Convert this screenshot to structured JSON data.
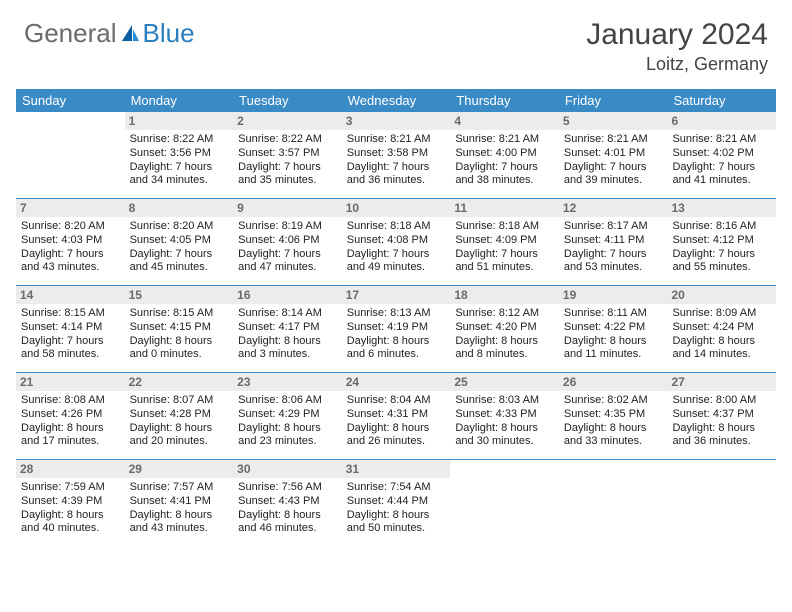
{
  "brand": {
    "part1": "General",
    "part2": "Blue"
  },
  "title": "January 2024",
  "location": "Loitz, Germany",
  "colors": {
    "header_bar": "#3a8ac6",
    "daynum_bg": "#ececec",
    "daynum_fg": "#6a6a6a",
    "text": "#222222",
    "title_fg": "#444444",
    "logo_gray": "#6b6b6b",
    "logo_blue": "#2a7fbf"
  },
  "day_names": [
    "Sunday",
    "Monday",
    "Tuesday",
    "Wednesday",
    "Thursday",
    "Friday",
    "Saturday"
  ],
  "weeks": [
    [
      {
        "n": "",
        "sr": "",
        "ss": "",
        "dl": ""
      },
      {
        "n": "1",
        "sr": "Sunrise: 8:22 AM",
        "ss": "Sunset: 3:56 PM",
        "dl": "Daylight: 7 hours and 34 minutes."
      },
      {
        "n": "2",
        "sr": "Sunrise: 8:22 AM",
        "ss": "Sunset: 3:57 PM",
        "dl": "Daylight: 7 hours and 35 minutes."
      },
      {
        "n": "3",
        "sr": "Sunrise: 8:21 AM",
        "ss": "Sunset: 3:58 PM",
        "dl": "Daylight: 7 hours and 36 minutes."
      },
      {
        "n": "4",
        "sr": "Sunrise: 8:21 AM",
        "ss": "Sunset: 4:00 PM",
        "dl": "Daylight: 7 hours and 38 minutes."
      },
      {
        "n": "5",
        "sr": "Sunrise: 8:21 AM",
        "ss": "Sunset: 4:01 PM",
        "dl": "Daylight: 7 hours and 39 minutes."
      },
      {
        "n": "6",
        "sr": "Sunrise: 8:21 AM",
        "ss": "Sunset: 4:02 PM",
        "dl": "Daylight: 7 hours and 41 minutes."
      }
    ],
    [
      {
        "n": "7",
        "sr": "Sunrise: 8:20 AM",
        "ss": "Sunset: 4:03 PM",
        "dl": "Daylight: 7 hours and 43 minutes."
      },
      {
        "n": "8",
        "sr": "Sunrise: 8:20 AM",
        "ss": "Sunset: 4:05 PM",
        "dl": "Daylight: 7 hours and 45 minutes."
      },
      {
        "n": "9",
        "sr": "Sunrise: 8:19 AM",
        "ss": "Sunset: 4:06 PM",
        "dl": "Daylight: 7 hours and 47 minutes."
      },
      {
        "n": "10",
        "sr": "Sunrise: 8:18 AM",
        "ss": "Sunset: 4:08 PM",
        "dl": "Daylight: 7 hours and 49 minutes."
      },
      {
        "n": "11",
        "sr": "Sunrise: 8:18 AM",
        "ss": "Sunset: 4:09 PM",
        "dl": "Daylight: 7 hours and 51 minutes."
      },
      {
        "n": "12",
        "sr": "Sunrise: 8:17 AM",
        "ss": "Sunset: 4:11 PM",
        "dl": "Daylight: 7 hours and 53 minutes."
      },
      {
        "n": "13",
        "sr": "Sunrise: 8:16 AM",
        "ss": "Sunset: 4:12 PM",
        "dl": "Daylight: 7 hours and 55 minutes."
      }
    ],
    [
      {
        "n": "14",
        "sr": "Sunrise: 8:15 AM",
        "ss": "Sunset: 4:14 PM",
        "dl": "Daylight: 7 hours and 58 minutes."
      },
      {
        "n": "15",
        "sr": "Sunrise: 8:15 AM",
        "ss": "Sunset: 4:15 PM",
        "dl": "Daylight: 8 hours and 0 minutes."
      },
      {
        "n": "16",
        "sr": "Sunrise: 8:14 AM",
        "ss": "Sunset: 4:17 PM",
        "dl": "Daylight: 8 hours and 3 minutes."
      },
      {
        "n": "17",
        "sr": "Sunrise: 8:13 AM",
        "ss": "Sunset: 4:19 PM",
        "dl": "Daylight: 8 hours and 6 minutes."
      },
      {
        "n": "18",
        "sr": "Sunrise: 8:12 AM",
        "ss": "Sunset: 4:20 PM",
        "dl": "Daylight: 8 hours and 8 minutes."
      },
      {
        "n": "19",
        "sr": "Sunrise: 8:11 AM",
        "ss": "Sunset: 4:22 PM",
        "dl": "Daylight: 8 hours and 11 minutes."
      },
      {
        "n": "20",
        "sr": "Sunrise: 8:09 AM",
        "ss": "Sunset: 4:24 PM",
        "dl": "Daylight: 8 hours and 14 minutes."
      }
    ],
    [
      {
        "n": "21",
        "sr": "Sunrise: 8:08 AM",
        "ss": "Sunset: 4:26 PM",
        "dl": "Daylight: 8 hours and 17 minutes."
      },
      {
        "n": "22",
        "sr": "Sunrise: 8:07 AM",
        "ss": "Sunset: 4:28 PM",
        "dl": "Daylight: 8 hours and 20 minutes."
      },
      {
        "n": "23",
        "sr": "Sunrise: 8:06 AM",
        "ss": "Sunset: 4:29 PM",
        "dl": "Daylight: 8 hours and 23 minutes."
      },
      {
        "n": "24",
        "sr": "Sunrise: 8:04 AM",
        "ss": "Sunset: 4:31 PM",
        "dl": "Daylight: 8 hours and 26 minutes."
      },
      {
        "n": "25",
        "sr": "Sunrise: 8:03 AM",
        "ss": "Sunset: 4:33 PM",
        "dl": "Daylight: 8 hours and 30 minutes."
      },
      {
        "n": "26",
        "sr": "Sunrise: 8:02 AM",
        "ss": "Sunset: 4:35 PM",
        "dl": "Daylight: 8 hours and 33 minutes."
      },
      {
        "n": "27",
        "sr": "Sunrise: 8:00 AM",
        "ss": "Sunset: 4:37 PM",
        "dl": "Daylight: 8 hours and 36 minutes."
      }
    ],
    [
      {
        "n": "28",
        "sr": "Sunrise: 7:59 AM",
        "ss": "Sunset: 4:39 PM",
        "dl": "Daylight: 8 hours and 40 minutes."
      },
      {
        "n": "29",
        "sr": "Sunrise: 7:57 AM",
        "ss": "Sunset: 4:41 PM",
        "dl": "Daylight: 8 hours and 43 minutes."
      },
      {
        "n": "30",
        "sr": "Sunrise: 7:56 AM",
        "ss": "Sunset: 4:43 PM",
        "dl": "Daylight: 8 hours and 46 minutes."
      },
      {
        "n": "31",
        "sr": "Sunrise: 7:54 AM",
        "ss": "Sunset: 4:44 PM",
        "dl": "Daylight: 8 hours and 50 minutes."
      },
      {
        "n": "",
        "sr": "",
        "ss": "",
        "dl": ""
      },
      {
        "n": "",
        "sr": "",
        "ss": "",
        "dl": ""
      },
      {
        "n": "",
        "sr": "",
        "ss": "",
        "dl": ""
      }
    ]
  ]
}
